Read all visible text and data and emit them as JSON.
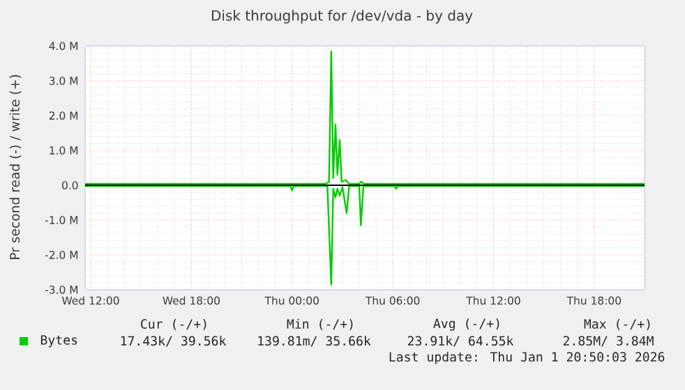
{
  "chart_data": {
    "type": "line",
    "title": "Disk throughput for /dev/vda - by day",
    "ylabel": "Pr second read (-) / write (+)",
    "xlim": [
      "2025-12-31T11:40",
      "2026-01-01T21:00"
    ],
    "ylim": [
      -3,
      4
    ],
    "xticks": [
      {
        "value": "2025-12-31T12:00",
        "label": "Wed 12:00"
      },
      {
        "value": "2025-12-31T18:00",
        "label": "Wed 18:00"
      },
      {
        "value": "2026-01-01T00:00",
        "label": "Thu 00:00"
      },
      {
        "value": "2026-01-01T06:00",
        "label": "Thu 06:00"
      },
      {
        "value": "2026-01-01T12:00",
        "label": "Thu 12:00"
      },
      {
        "value": "2026-01-01T18:00",
        "label": "Thu 18:00"
      }
    ],
    "yticks": [
      {
        "value": -3,
        "label": "-3.0 M"
      },
      {
        "value": -2,
        "label": "-2.0 M"
      },
      {
        "value": -1,
        "label": "-1.0 M"
      },
      {
        "value": 0,
        "label": "0.0"
      },
      {
        "value": 1,
        "label": "1.0 M"
      },
      {
        "value": 2,
        "label": "2.0 M"
      },
      {
        "value": 3,
        "label": "3.0 M"
      },
      {
        "value": 4,
        "label": "4.0 M"
      }
    ],
    "grid": true,
    "legend": "bottom",
    "series": [
      {
        "name": "Bytes",
        "color": "#00cc00",
        "x": [
          "2025-12-31T11:40",
          "2025-12-31T20:00",
          "2026-01-01T02:00",
          "2026-01-01T02:12",
          "2026-01-01T02:20",
          "2026-01-01T02:27",
          "2026-01-01T02:35",
          "2026-01-01T02:42",
          "2026-01-01T02:50",
          "2026-01-01T02:57",
          "2026-01-01T03:12",
          "2026-01-01T03:24",
          "2026-01-01T04:00",
          "2026-01-01T04:06",
          "2026-01-01T04:18",
          "2026-01-01T21:00"
        ],
        "values": [
          0.04,
          0.04,
          0.04,
          0.1,
          3.84,
          0.2,
          1.75,
          0.3,
          1.3,
          0.1,
          0.15,
          0.04,
          0.04,
          0.1,
          0.04,
          0.04
        ]
      },
      {
        "color": "#00cc00",
        "x": [
          "2025-12-31T11:40",
          "2025-12-31T23:54",
          "2026-01-01T00:00",
          "2026-01-01T00:06",
          "2026-01-01T02:06",
          "2026-01-01T02:20",
          "2026-01-01T02:27",
          "2026-01-01T02:35",
          "2026-01-01T02:42",
          "2026-01-01T02:50",
          "2026-01-01T03:00",
          "2026-01-01T03:15",
          "2026-01-01T03:24",
          "2026-01-01T04:00",
          "2026-01-01T04:06",
          "2026-01-01T04:15",
          "2026-01-01T06:06",
          "2026-01-01T06:12",
          "2026-01-01T06:18",
          "2026-01-01T21:00"
        ],
        "values": [
          -0.02,
          -0.02,
          -0.15,
          -0.02,
          -0.02,
          -2.85,
          -0.1,
          -0.35,
          -0.1,
          -0.3,
          -0.05,
          -0.8,
          -0.02,
          -0.02,
          -1.15,
          -0.02,
          -0.02,
          -0.1,
          -0.02,
          -0.02
        ]
      }
    ],
    "ref_lines": [
      {
        "axis": "y",
        "value": 0,
        "color": "#000000"
      }
    ],
    "annotations": [
      "Cur (-/+)",
      "Min (-/+)",
      "Avg (-/+)",
      "Max (-/+)",
      "17.43k/ 39.56k",
      "139.81m/ 35.66k",
      "23.91k/ 64.55k",
      "2.85M/  3.84M",
      "Last update: Thu Jan  1 20:50:03 2026"
    ]
  }
}
